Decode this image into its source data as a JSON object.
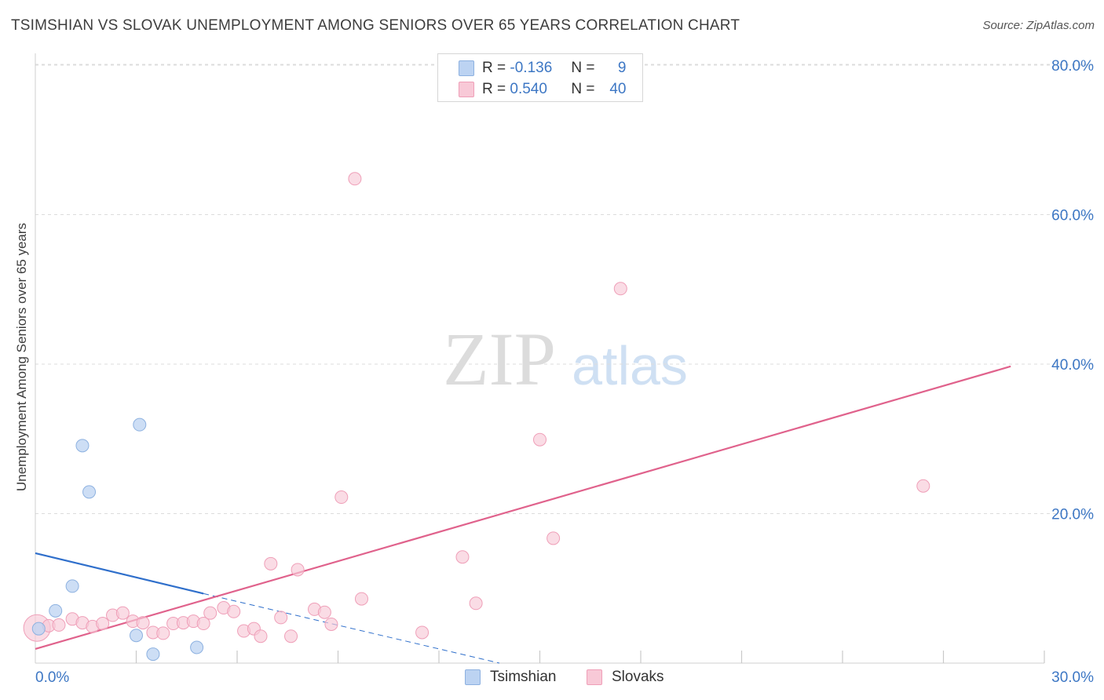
{
  "title": "TSIMSHIAN VS SLOVAK UNEMPLOYMENT AMONG SENIORS OVER 65 YEARS CORRELATION CHART",
  "source": "Source: ZipAtlas.com",
  "watermark": {
    "zip": "ZIP",
    "atlas": "atlas"
  },
  "legend": {
    "r_label": "R =",
    "n_label": "N =",
    "rows": [
      {
        "name": "Tsimshian",
        "r": "-0.136",
        "n": "9"
      },
      {
        "name": "Slovaks",
        "r": "0.540",
        "n": "40"
      }
    ]
  },
  "colors": {
    "tsimshian_fill": "#bcd3f2",
    "tsimshian_stroke": "#8db1e0",
    "tsimshian_line": "#2f6fcb",
    "slovaks_fill": "#f8c9d7",
    "slovaks_stroke": "#ef9fb8",
    "slovaks_line": "#e0628c",
    "axis_label": "#3d77c4",
    "grid": "#dcdcdc"
  },
  "chart_data": {
    "type": "scatter",
    "title": "TSIMSHIAN VS SLOVAK UNEMPLOYMENT AMONG SENIORS OVER 65 YEARS CORRELATION CHART",
    "xlabel": "",
    "ylabel": "Unemployment Among Seniors over 65 years",
    "xlim": [
      0,
      30
    ],
    "ylim": [
      0,
      80
    ],
    "x_tick_labels": [
      "0.0%",
      "30.0%"
    ],
    "y_ticks": [
      20,
      40,
      60,
      80
    ],
    "y_tick_labels": [
      "20.0%",
      "40.0%",
      "60.0%",
      "80.0%"
    ],
    "grid": true,
    "series": [
      {
        "name": "Tsimshian",
        "r": -0.136,
        "n": 9,
        "points": [
          [
            0.1,
            4.6
          ],
          [
            0.6,
            7.0
          ],
          [
            1.1,
            10.3
          ],
          [
            1.4,
            29.1
          ],
          [
            1.6,
            22.9
          ],
          [
            3.0,
            3.7
          ],
          [
            3.1,
            31.9
          ],
          [
            3.5,
            1.2
          ],
          [
            4.8,
            2.1
          ]
        ],
        "trend": {
          "x0": 0,
          "y0": 14.7,
          "x1": 5.0,
          "y1": 9.3,
          "dash_x1": 13.8,
          "dash_y1": 0
        }
      },
      {
        "name": "Slovaks",
        "r": 0.54,
        "n": 40,
        "points": [
          [
            0.05,
            4.7
          ],
          [
            0.4,
            5.0
          ],
          [
            0.7,
            5.1
          ],
          [
            1.1,
            5.9
          ],
          [
            1.4,
            5.4
          ],
          [
            1.7,
            4.9
          ],
          [
            2.0,
            5.3
          ],
          [
            2.3,
            6.4
          ],
          [
            2.6,
            6.7
          ],
          [
            2.9,
            5.6
          ],
          [
            3.2,
            5.4
          ],
          [
            3.5,
            4.1
          ],
          [
            3.8,
            4.0
          ],
          [
            4.1,
            5.3
          ],
          [
            4.4,
            5.4
          ],
          [
            4.7,
            5.6
          ],
          [
            5.0,
            5.3
          ],
          [
            5.2,
            6.7
          ],
          [
            5.6,
            7.4
          ],
          [
            5.9,
            6.9
          ],
          [
            6.2,
            4.3
          ],
          [
            6.5,
            4.6
          ],
          [
            6.7,
            3.6
          ],
          [
            7.0,
            13.3
          ],
          [
            7.3,
            6.1
          ],
          [
            7.6,
            3.6
          ],
          [
            7.8,
            12.5
          ],
          [
            8.3,
            7.2
          ],
          [
            8.6,
            6.8
          ],
          [
            8.8,
            5.2
          ],
          [
            9.1,
            22.2
          ],
          [
            9.5,
            64.8
          ],
          [
            9.7,
            8.6
          ],
          [
            11.5,
            4.1
          ],
          [
            12.7,
            14.2
          ],
          [
            13.1,
            8.0
          ],
          [
            15.0,
            29.9
          ],
          [
            15.4,
            16.7
          ],
          [
            17.4,
            50.1
          ],
          [
            26.4,
            23.7
          ]
        ],
        "trend": {
          "x0": 0,
          "y0": 1.9,
          "x1": 29.0,
          "y1": 39.7
        }
      }
    ]
  }
}
